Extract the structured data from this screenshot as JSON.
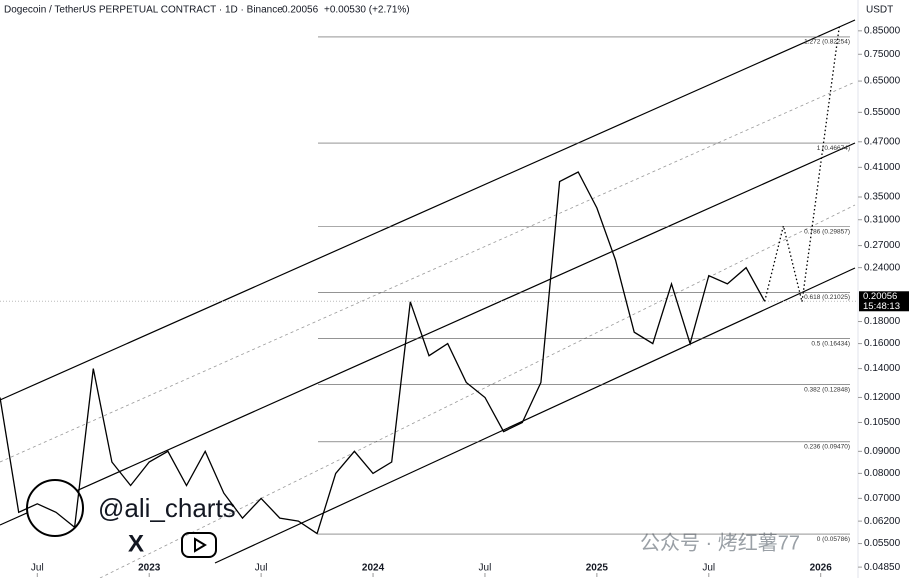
{
  "chart_data": {
    "type": "line",
    "title": "Dogecoin / TetherUS PERPETUAL CONTRACT · 1D · Binance",
    "last_price": 0.20056,
    "change": "+0.00530 (+2.71%)",
    "countdown": "15:48:13",
    "y_unit": "USDT",
    "log_scale": true,
    "color": "#000000",
    "x": [
      "2022-05",
      "2022-06",
      "2022-07",
      "2022-08",
      "2022-09",
      "2022-10",
      "2022-11",
      "2022-12",
      "2023-01",
      "2023-02",
      "2023-03",
      "2023-04",
      "2023-05",
      "2023-06",
      "2023-07",
      "2023-08",
      "2023-09",
      "2023-10",
      "2023-11",
      "2023-12",
      "2024-01",
      "2024-02",
      "2024-03",
      "2024-04",
      "2024-05",
      "2024-06",
      "2024-07",
      "2024-08",
      "2024-09",
      "2024-10",
      "2024-11",
      "2024-12",
      "2025-01",
      "2025-02",
      "2025-03",
      "2025-04",
      "2025-05",
      "2025-06",
      "2025-07",
      "2025-08",
      "2025-09",
      "2025-10"
    ],
    "values": [
      0.12,
      0.065,
      0.068,
      0.065,
      0.06,
      0.14,
      0.085,
      0.075,
      0.085,
      0.09,
      0.075,
      0.09,
      0.072,
      0.063,
      0.07,
      0.063,
      0.062,
      0.058,
      0.08,
      0.09,
      0.08,
      0.085,
      0.2,
      0.15,
      0.16,
      0.13,
      0.12,
      0.1,
      0.105,
      0.13,
      0.38,
      0.4,
      0.33,
      0.25,
      0.17,
      0.16,
      0.22,
      0.16,
      0.23,
      0.22,
      0.24,
      0.20056
    ],
    "projection_x": [
      "2025-10",
      "2025-11",
      "2025-12",
      "2026-02"
    ],
    "projection_values": [
      0.20056,
      0.3,
      0.2,
      0.87
    ],
    "fib_levels": [
      {
        "value": 0.05786,
        "label": "0 (0.05786)"
      },
      {
        "value": 0.0947,
        "label": "0.236 (0.09470)"
      },
      {
        "value": 0.12848,
        "label": "0.382 (0.12848)"
      },
      {
        "value": 0.16434,
        "label": "0.5 (0.16434)"
      },
      {
        "value": 0.21025,
        "label": "0.618 (0.21025)"
      },
      {
        "value": 0.29857,
        "label": "0.786 (0.29857)"
      },
      {
        "value": 0.46674,
        "label": "1 (0.46674)"
      },
      {
        "value": 0.82254,
        "label": "1.272 (0.82254)"
      }
    ],
    "xlim": [
      "2022-05",
      "2026-03"
    ],
    "xticks": [
      {
        "value": "2022-07",
        "label": "Jul"
      },
      {
        "value": "2023-01",
        "label": "2023"
      },
      {
        "value": "2023-07",
        "label": "Jul"
      },
      {
        "value": "2024-01",
        "label": "2024"
      },
      {
        "value": "2024-07",
        "label": "Jul"
      },
      {
        "value": "2025-01",
        "label": "2025"
      },
      {
        "value": "2025-07",
        "label": "Jul"
      },
      {
        "value": "2026-01",
        "label": "2026"
      }
    ],
    "ylim": [
      0.0465,
      0.95
    ],
    "yticks": [
      {
        "value": 0.85,
        "label": "0.85000"
      },
      {
        "value": 0.75,
        "label": "0.75000"
      },
      {
        "value": 0.65,
        "label": "0.65000"
      },
      {
        "value": 0.55,
        "label": "0.55000"
      },
      {
        "value": 0.47,
        "label": "0.47000"
      },
      {
        "value": 0.41,
        "label": "0.41000"
      },
      {
        "value": 0.35,
        "label": "0.35000"
      },
      {
        "value": 0.31,
        "label": "0.31000"
      },
      {
        "value": 0.27,
        "label": "0.27000"
      },
      {
        "value": 0.24,
        "label": "0.24000"
      },
      {
        "value": 0.18,
        "label": "0.18000"
      },
      {
        "value": 0.16,
        "label": "0.16000"
      },
      {
        "value": 0.14,
        "label": "0.14000"
      },
      {
        "value": 0.12,
        "label": "0.12000"
      },
      {
        "value": 0.105,
        "label": "0.10500"
      },
      {
        "value": 0.09,
        "label": "0.09000"
      },
      {
        "value": 0.08,
        "label": "0.08000"
      },
      {
        "value": 0.07,
        "label": "0.07000"
      },
      {
        "value": 0.062,
        "label": "0.06200"
      },
      {
        "value": 0.055,
        "label": "0.05500"
      },
      {
        "value": 0.0485,
        "label": "0.04850"
      }
    ],
    "watermark": "@ali_charts",
    "channel_credit": "公众号 · 烤红薯77"
  }
}
